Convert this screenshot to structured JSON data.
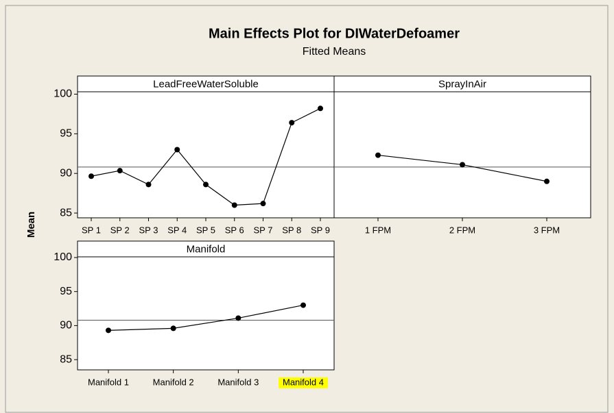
{
  "title": "Main Effects Plot for DIWaterDefoamer",
  "subtitle": "Fitted Means",
  "ylabel": "Mean",
  "chart_data": [
    {
      "type": "line",
      "title": "LeadFreeWaterSoluble",
      "categories": [
        "SP 1",
        "SP 2",
        "SP 3",
        "SP 4",
        "SP 5",
        "SP 6",
        "SP 7",
        "SP 8",
        "SP 9"
      ],
      "values": [
        89.65,
        90.35,
        88.6,
        93.0,
        88.6,
        86.0,
        86.2,
        96.4,
        98.2
      ],
      "color": "#000000",
      "reference_line": 90.8,
      "ylim": [
        84.4,
        100.3
      ],
      "yticks": [
        85,
        90,
        95,
        100
      ]
    },
    {
      "type": "line",
      "title": "SprayInAir",
      "categories": [
        "1 FPM",
        "2 FPM",
        "3 FPM"
      ],
      "values": [
        92.3,
        91.1,
        89.0
      ],
      "color": "#000000",
      "reference_line": 90.8,
      "ylim": [
        84.4,
        100.3
      ]
    },
    {
      "type": "line",
      "title": "Manifold",
      "categories": [
        "Manifold 1",
        "Manifold 2",
        "Manifold 3",
        "Manifold 4"
      ],
      "values": [
        89.3,
        89.6,
        91.1,
        93.0
      ],
      "color": "#000000",
      "reference_line": 90.8,
      "ylim": [
        83.5,
        100.1
      ],
      "yticks": [
        85,
        90,
        95,
        100
      ],
      "highlighted_category": "Manifold 4"
    }
  ]
}
